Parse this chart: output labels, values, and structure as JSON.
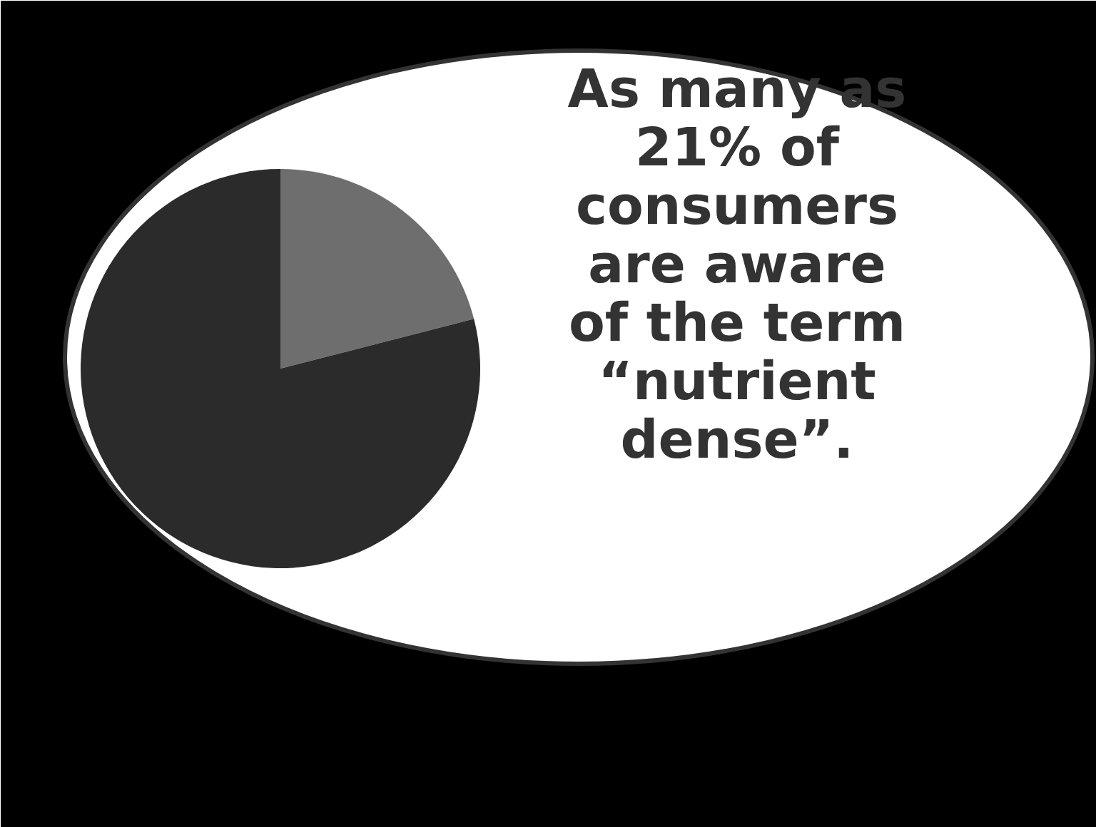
{
  "chart_data": {
    "type": "pie",
    "categories": [
      null,
      null
    ],
    "values": [
      21,
      79
    ],
    "colors": [
      "#6e6e6e",
      "#2b2b2b"
    ],
    "annotations": [
      "As many as 21% of consumers are aware of the term “nutrient dense”."
    ]
  }
}
